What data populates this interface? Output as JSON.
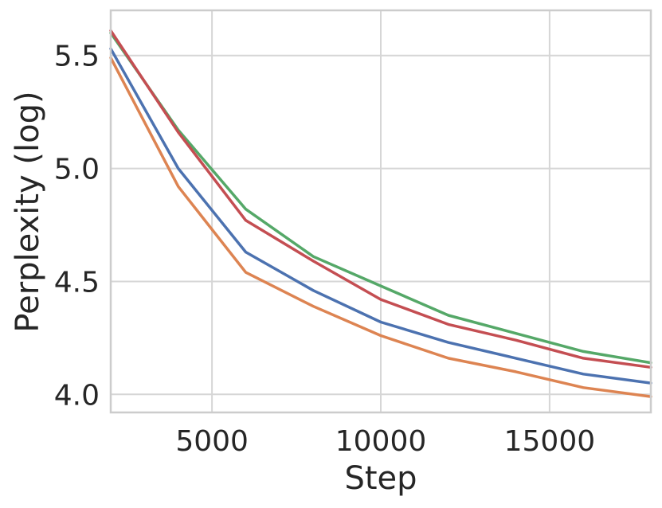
{
  "chart_data": {
    "type": "line",
    "title": "",
    "xlabel": "Step",
    "ylabel": "Perplexity (log)",
    "xlim": [
      2000,
      18000
    ],
    "ylim": [
      3.92,
      5.7
    ],
    "xticks": [
      5000,
      10000,
      15000
    ],
    "xtick_labels": [
      "5000",
      "10000",
      "15000"
    ],
    "yticks": [
      4.0,
      4.5,
      5.0,
      5.5
    ],
    "ytick_labels": [
      "4.0",
      "4.5",
      "5.0",
      "5.5"
    ],
    "grid": true,
    "x": [
      2000,
      4000,
      6000,
      8000,
      10000,
      12000,
      14000,
      16000,
      18000
    ],
    "series": [
      {
        "color": "#4C72B0",
        "values": [
          5.53,
          5.0,
          4.63,
          4.46,
          4.32,
          4.23,
          4.16,
          4.09,
          4.05
        ]
      },
      {
        "color": "#DD8452",
        "values": [
          5.49,
          4.92,
          4.54,
          4.39,
          4.26,
          4.16,
          4.1,
          4.03,
          3.99
        ]
      },
      {
        "color": "#55A868",
        "values": [
          5.6,
          5.17,
          4.82,
          4.61,
          4.48,
          4.35,
          4.27,
          4.19,
          4.14
        ]
      },
      {
        "color": "#C44E52",
        "values": [
          5.61,
          5.16,
          4.77,
          4.59,
          4.42,
          4.31,
          4.24,
          4.16,
          4.12
        ]
      }
    ]
  }
}
